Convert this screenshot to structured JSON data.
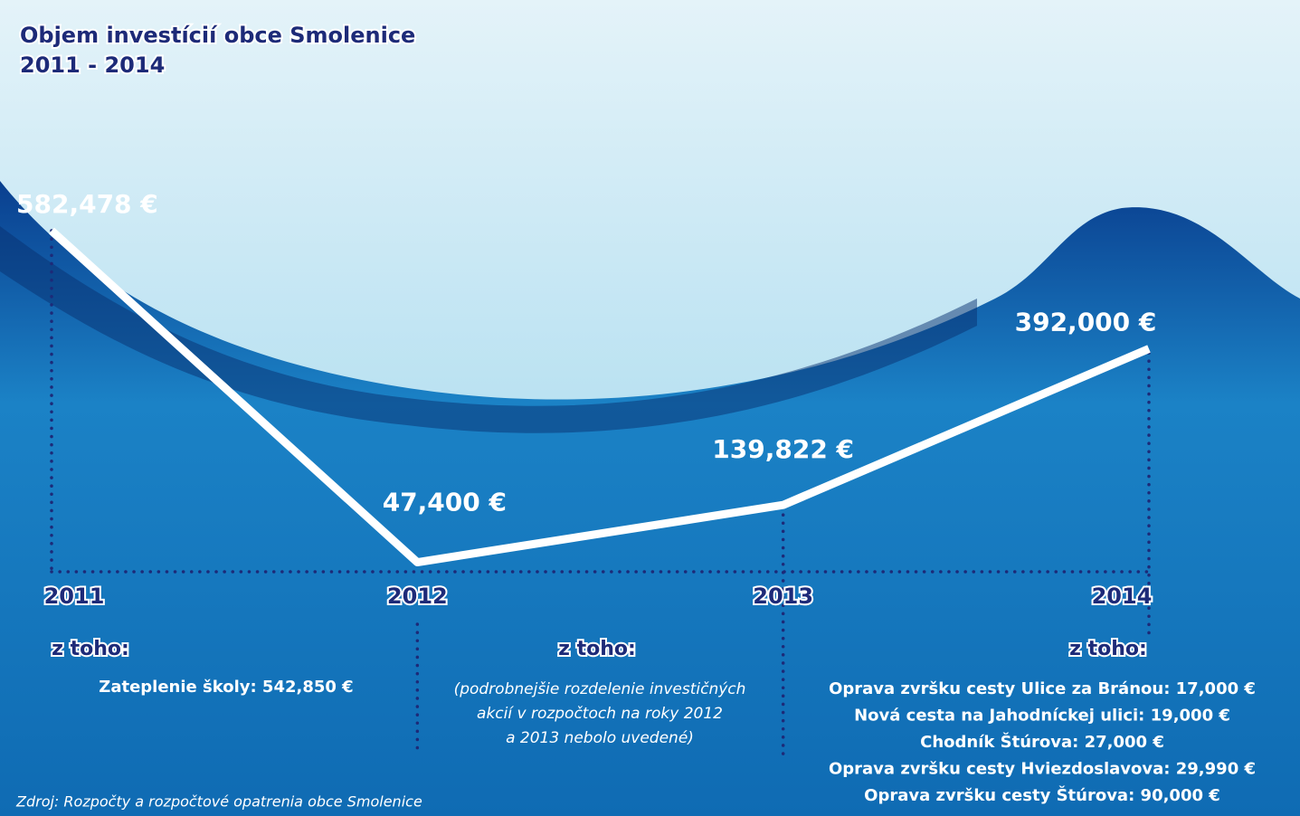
{
  "chart_data": {
    "type": "line",
    "title": "Objem investícií obce Smolenice",
    "subtitle": "2011 - 2014",
    "categories": [
      "2011",
      "2012",
      "2013",
      "2014"
    ],
    "values": [
      582478,
      47400,
      139822,
      392000
    ],
    "value_labels": [
      "582,478 €",
      "47,400 €",
      "139,822 €",
      "392,000 €"
    ],
    "color": "#ffffff",
    "breakdowns": [
      {
        "heading": "z toho:",
        "items": [
          "Zateplenie školy: 542,850 €"
        ]
      },
      {
        "heading": "z toho:",
        "items": [
          "(podrobnejšie rozdelenie investičných",
          "akcií v rozpočtoch na roky 2012",
          "a 2013 nebolo uvedené)"
        ]
      },
      {
        "heading": "z toho:",
        "items": [
          "Oprava zvršku cesty Ulice za Bránou: 17,000 €",
          "Nová cesta na Jahodníckej ulici: 19,000 €",
          "Chodník Štúrova: 27,000 €",
          "Oprava zvršku cesty Hviezdoslavova: 29,990 €",
          "Oprava zvršku cesty Štúrova: 90,000 €"
        ]
      }
    ],
    "source": "Zdroj: Rozpočty a rozpočtové opatrenia obce Smolenice"
  }
}
